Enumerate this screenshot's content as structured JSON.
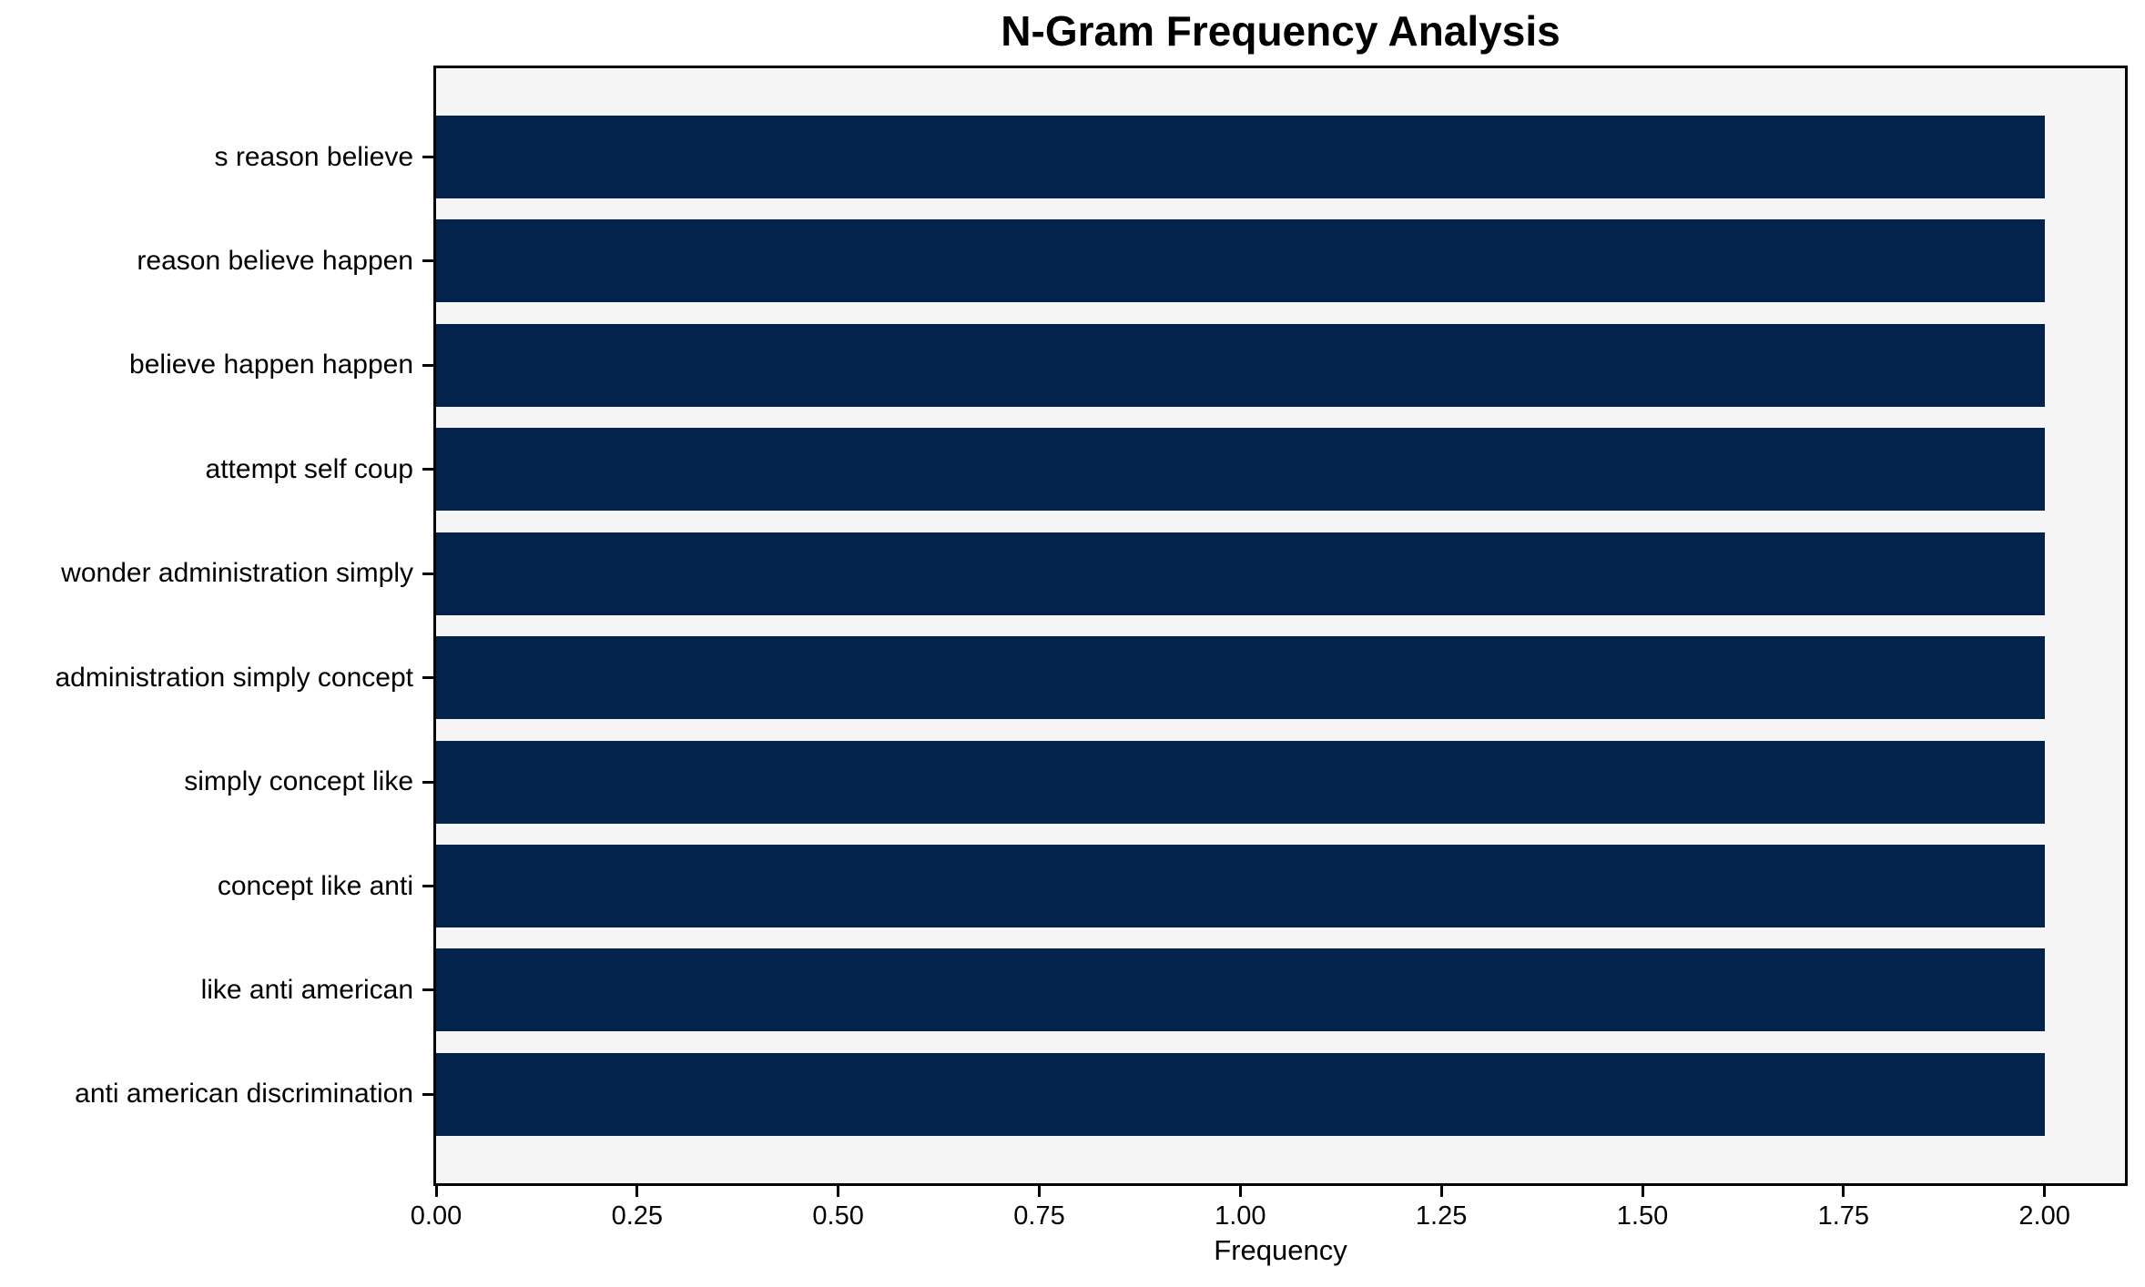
{
  "chart_data": {
    "type": "bar",
    "orientation": "horizontal",
    "title": "N-Gram Frequency Analysis",
    "xlabel": "Frequency",
    "ylabel": "",
    "categories": [
      "s reason believe",
      "reason believe happen",
      "believe happen happen",
      "attempt self coup",
      "wonder administration simply",
      "administration simply concept",
      "simply concept like",
      "concept like anti",
      "like anti american",
      "anti american discrimination"
    ],
    "values": [
      2,
      2,
      2,
      2,
      2,
      2,
      2,
      2,
      2,
      2
    ],
    "xlim": [
      0,
      2.1
    ],
    "xticks": [
      0.0,
      0.25,
      0.5,
      0.75,
      1.0,
      1.25,
      1.5,
      1.75,
      2.0
    ],
    "xtick_labels": [
      "0.00",
      "0.25",
      "0.50",
      "0.75",
      "1.00",
      "1.25",
      "1.50",
      "1.75",
      "2.00"
    ],
    "grid": false,
    "legend_position": "none",
    "bar_color": "#03234d",
    "plot_background": "#f5f5f6",
    "figure_background": "#ffffff",
    "spine_color": "#000000"
  }
}
